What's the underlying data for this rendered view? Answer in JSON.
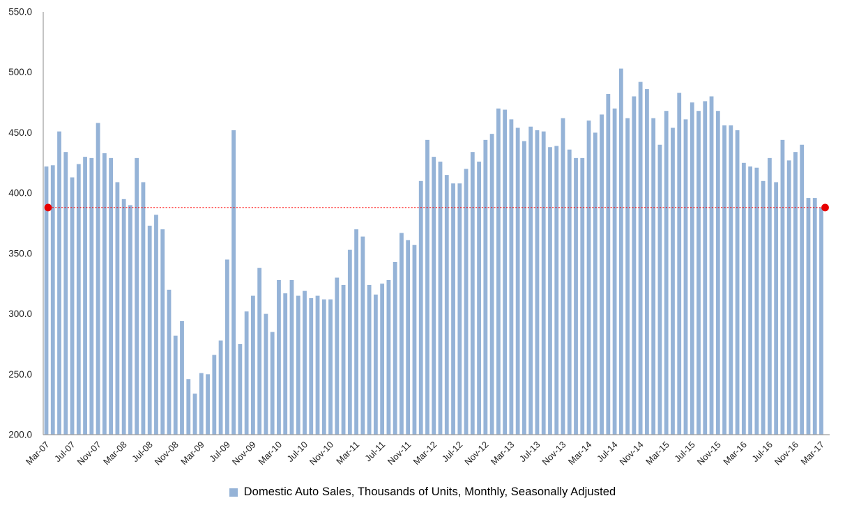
{
  "page": {
    "background_color": "#FFFFFF"
  },
  "chart_data": {
    "type": "bar",
    "title": "",
    "legend_position": "bottom-center",
    "grid": false,
    "bar_color": "#95B3D7",
    "axis_color": "#9C9C9C",
    "text_color": "#1F1F1F",
    "ylim": [
      200.0,
      550.0
    ],
    "y_tick_step": 50,
    "y_tick_labels": [
      "550.0",
      "500.0",
      "450.0",
      "400.0",
      "350.0",
      "300.0",
      "250.0",
      "200.0"
    ],
    "x_tick_interval": 4,
    "x_tick_labels": [
      "Mar-07",
      "Jul-07",
      "Nov-07",
      "Mar-08",
      "Jul-08",
      "Nov-08",
      "Mar-09",
      "Jul-09",
      "Nov-09",
      "Mar-10",
      "Jul-10",
      "Nov-10",
      "Mar-11",
      "Jul-11",
      "Nov-11",
      "Mar-12",
      "Jul-12",
      "Nov-12",
      "Mar-13",
      "Jul-13",
      "Nov-13",
      "Mar-14",
      "Jul-14",
      "Nov-14",
      "Mar-15",
      "Jul-15",
      "Nov-15",
      "Mar-16",
      "Jul-16",
      "Nov-16",
      "Mar-17"
    ],
    "categories": [
      "Mar-07",
      "Apr-07",
      "May-07",
      "Jun-07",
      "Jul-07",
      "Aug-07",
      "Sep-07",
      "Oct-07",
      "Nov-07",
      "Dec-07",
      "Jan-08",
      "Feb-08",
      "Mar-08",
      "Apr-08",
      "May-08",
      "Jun-08",
      "Jul-08",
      "Aug-08",
      "Sep-08",
      "Oct-08",
      "Nov-08",
      "Dec-08",
      "Jan-09",
      "Feb-09",
      "Mar-09",
      "Apr-09",
      "May-09",
      "Jun-09",
      "Jul-09",
      "Aug-09",
      "Sep-09",
      "Oct-09",
      "Nov-09",
      "Dec-09",
      "Jan-10",
      "Feb-10",
      "Mar-10",
      "Apr-10",
      "May-10",
      "Jun-10",
      "Jul-10",
      "Aug-10",
      "Sep-10",
      "Oct-10",
      "Nov-10",
      "Dec-10",
      "Jan-11",
      "Feb-11",
      "Mar-11",
      "Apr-11",
      "May-11",
      "Jun-11",
      "Jul-11",
      "Aug-11",
      "Sep-11",
      "Oct-11",
      "Nov-11",
      "Dec-11",
      "Jan-12",
      "Feb-12",
      "Mar-12",
      "Apr-12",
      "May-12",
      "Jun-12",
      "Jul-12",
      "Aug-12",
      "Sep-12",
      "Oct-12",
      "Nov-12",
      "Dec-12",
      "Jan-13",
      "Feb-13",
      "Mar-13",
      "Apr-13",
      "May-13",
      "Jun-13",
      "Jul-13",
      "Aug-13",
      "Sep-13",
      "Oct-13",
      "Nov-13",
      "Dec-13",
      "Jan-14",
      "Feb-14",
      "Mar-14",
      "Apr-14",
      "May-14",
      "Jun-14",
      "Jul-14",
      "Aug-14",
      "Sep-14",
      "Oct-14",
      "Nov-14",
      "Dec-14",
      "Jan-15",
      "Feb-15",
      "Mar-15",
      "Apr-15",
      "May-15",
      "Jun-15",
      "Jul-15",
      "Aug-15",
      "Sep-15",
      "Oct-15",
      "Nov-15",
      "Dec-15",
      "Jan-16",
      "Feb-16",
      "Mar-16",
      "Apr-16",
      "May-16",
      "Jun-16",
      "Jul-16",
      "Aug-16",
      "Sep-16",
      "Oct-16",
      "Nov-16",
      "Dec-16",
      "Jan-17",
      "Feb-17",
      "Mar-17"
    ],
    "series": [
      {
        "name": "Domestic Auto Sales, Thousands of Units, Monthly, Seasonally Adjusted",
        "values": [
          422,
          423,
          451,
          434,
          413,
          424,
          430,
          429,
          458,
          433,
          429,
          409,
          395,
          390,
          429,
          409,
          373,
          382,
          370,
          320,
          282,
          294,
          246,
          234,
          251,
          250,
          266,
          278,
          345,
          452,
          275,
          302,
          315,
          338,
          300,
          285,
          328,
          317,
          328,
          315,
          319,
          313,
          315,
          312,
          312,
          330,
          324,
          353,
          370,
          364,
          324,
          316,
          325,
          328,
          343,
          367,
          361,
          357,
          410,
          444,
          430,
          426,
          415,
          408,
          408,
          420,
          434,
          426,
          444,
          449,
          470,
          469,
          461,
          454,
          443,
          455,
          452,
          451,
          438,
          439,
          462,
          436,
          429,
          429,
          460,
          450,
          465,
          482,
          470,
          503,
          462,
          480,
          492,
          486,
          462,
          440,
          468,
          454,
          483,
          461,
          475,
          468,
          476,
          480,
          468,
          456,
          456,
          452,
          425,
          422,
          421,
          410,
          429,
          409,
          444,
          427,
          434,
          440,
          396,
          396,
          388
        ]
      }
    ],
    "reference_line": {
      "value": 388,
      "color": "#FF0000",
      "style": "dotted",
      "marker_color": "#E80000",
      "start_marker": true,
      "end_marker": true
    }
  }
}
